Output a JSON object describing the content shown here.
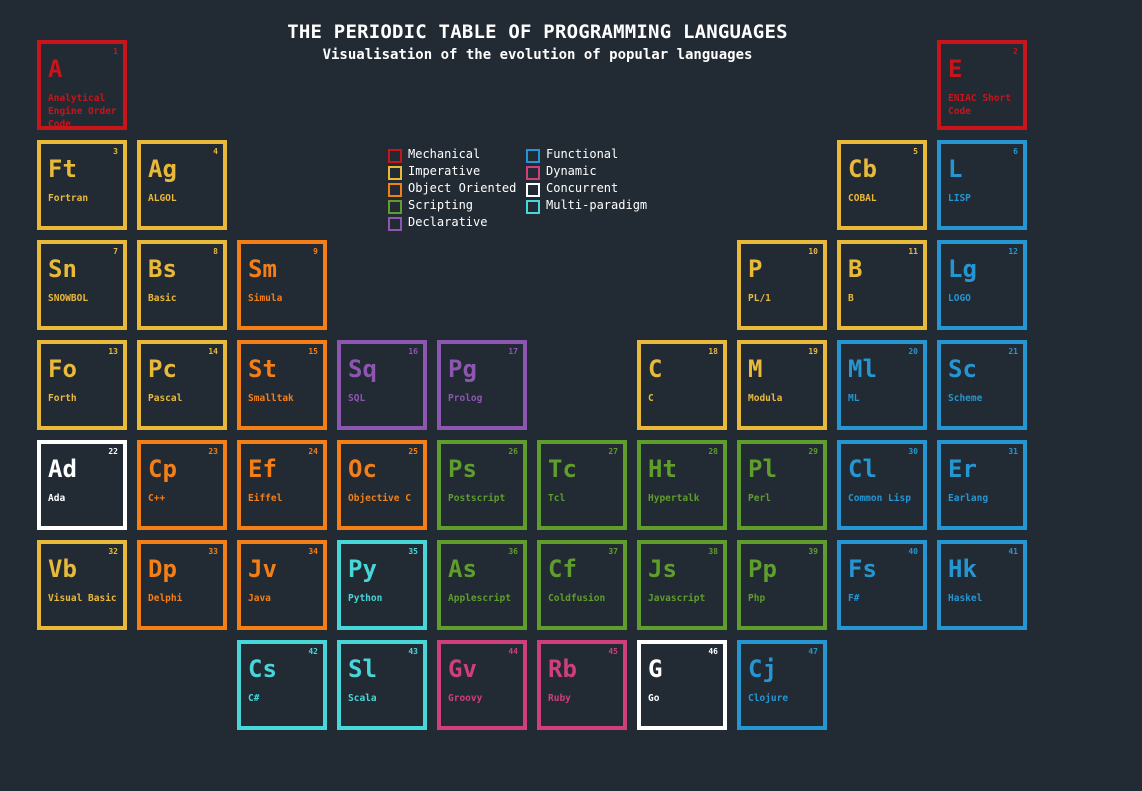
{
  "header": {
    "title": "THE PERIODIC TABLE OF PROGRAMMING LANGUAGES",
    "subtitle": "Visualisation of the evolution of popular languages"
  },
  "colors": {
    "mechanical": "#c8141b",
    "imperative": "#e9b93a",
    "object_oriented": "#f57f17",
    "scripting": "#5f9d2c",
    "declarative": "#8d56b1",
    "functional": "#2596d2",
    "dynamic": "#cf3f7a",
    "concurrent": "#ffffff",
    "multi_paradigm": "#48d7d9"
  },
  "legend": [
    {
      "label": "Mechanical",
      "category": "mechanical"
    },
    {
      "label": "Imperative",
      "category": "imperative"
    },
    {
      "label": "Object Oriented",
      "category": "object_oriented"
    },
    {
      "label": "Scripting",
      "category": "scripting"
    },
    {
      "label": "Declarative",
      "category": "declarative"
    },
    {
      "label": "Functional",
      "category": "functional"
    },
    {
      "label": "Dynamic",
      "category": "dynamic"
    },
    {
      "label": "Concurrent",
      "category": "concurrent"
    },
    {
      "label": "Multi-paradigm",
      "category": "multi_paradigm"
    }
  ],
  "elements": [
    {
      "num": "1",
      "sym": "A",
      "name": "Analytical Engine Order Code",
      "category": "mechanical"
    },
    {
      "num": "2",
      "sym": "E",
      "name": "ENIAC Short Code",
      "category": "mechanical"
    },
    {
      "num": "3",
      "sym": "Ft",
      "name": "Fortran",
      "category": "imperative"
    },
    {
      "num": "4",
      "sym": "Ag",
      "name": "ALGOL",
      "category": "imperative"
    },
    {
      "num": "5",
      "sym": "Cb",
      "name": "COBAL",
      "category": "imperative"
    },
    {
      "num": "6",
      "sym": "L",
      "name": "LISP",
      "category": "functional"
    },
    {
      "num": "7",
      "sym": "Sn",
      "name": "SNOWBOL",
      "category": "imperative"
    },
    {
      "num": "8",
      "sym": "Bs",
      "name": "Basic",
      "category": "imperative"
    },
    {
      "num": "9",
      "sym": "Sm",
      "name": "Simula",
      "category": "object_oriented"
    },
    {
      "num": "10",
      "sym": "P",
      "name": "PL/1",
      "category": "imperative"
    },
    {
      "num": "11",
      "sym": "B",
      "name": "B",
      "category": "imperative"
    },
    {
      "num": "12",
      "sym": "Lg",
      "name": "LOGO",
      "category": "functional"
    },
    {
      "num": "13",
      "sym": "Fo",
      "name": "Forth",
      "category": "imperative"
    },
    {
      "num": "14",
      "sym": "Pc",
      "name": "Pascal",
      "category": "imperative"
    },
    {
      "num": "15",
      "sym": "St",
      "name": "Smalltak",
      "category": "object_oriented"
    },
    {
      "num": "16",
      "sym": "Sq",
      "name": "SQL",
      "category": "declarative"
    },
    {
      "num": "17",
      "sym": "Pg",
      "name": "Prolog",
      "category": "declarative"
    },
    {
      "num": "18",
      "sym": "C",
      "name": "C",
      "category": "imperative"
    },
    {
      "num": "19",
      "sym": "M",
      "name": "Modula",
      "category": "imperative"
    },
    {
      "num": "20",
      "sym": "Ml",
      "name": "ML",
      "category": "functional"
    },
    {
      "num": "21",
      "sym": "Sc",
      "name": "Scheme",
      "category": "functional"
    },
    {
      "num": "22",
      "sym": "Ad",
      "name": "Ada",
      "category": "concurrent"
    },
    {
      "num": "23",
      "sym": "Cp",
      "name": "C++",
      "category": "object_oriented"
    },
    {
      "num": "24",
      "sym": "Ef",
      "name": "Eiffel",
      "category": "object_oriented"
    },
    {
      "num": "25",
      "sym": "Oc",
      "name": "Objective C",
      "category": "object_oriented"
    },
    {
      "num": "26",
      "sym": "Ps",
      "name": "Postscript",
      "category": "scripting"
    },
    {
      "num": "27",
      "sym": "Tc",
      "name": "Tcl",
      "category": "scripting"
    },
    {
      "num": "28",
      "sym": "Ht",
      "name": "Hypertalk",
      "category": "scripting"
    },
    {
      "num": "29",
      "sym": "Pl",
      "name": "Perl",
      "category": "scripting"
    },
    {
      "num": "30",
      "sym": "Cl",
      "name": "Common Lisp",
      "category": "functional"
    },
    {
      "num": "31",
      "sym": "Er",
      "name": "Earlang",
      "category": "functional"
    },
    {
      "num": "32",
      "sym": "Vb",
      "name": "Visual Basic",
      "category": "imperative"
    },
    {
      "num": "33",
      "sym": "Dp",
      "name": "Delphi",
      "category": "object_oriented"
    },
    {
      "num": "34",
      "sym": "Jv",
      "name": "Java",
      "category": "object_oriented"
    },
    {
      "num": "35",
      "sym": "Py",
      "name": "Python",
      "category": "multi_paradigm"
    },
    {
      "num": "36",
      "sym": "As",
      "name": "Applescript",
      "category": "scripting"
    },
    {
      "num": "37",
      "sym": "Cf",
      "name": "Coldfusion",
      "category": "scripting"
    },
    {
      "num": "38",
      "sym": "Js",
      "name": "Javascript",
      "category": "scripting"
    },
    {
      "num": "39",
      "sym": "Pp",
      "name": "Php",
      "category": "scripting"
    },
    {
      "num": "40",
      "sym": "Fs",
      "name": "F#",
      "category": "functional"
    },
    {
      "num": "41",
      "sym": "Hk",
      "name": "Haskel",
      "category": "functional"
    },
    {
      "num": "42",
      "sym": "Cs",
      "name": "C#",
      "category": "multi_paradigm"
    },
    {
      "num": "43",
      "sym": "Sl",
      "name": "Scala",
      "category": "multi_paradigm"
    },
    {
      "num": "44",
      "sym": "Gv",
      "name": "Groovy",
      "category": "dynamic"
    },
    {
      "num": "45",
      "sym": "Rb",
      "name": "Ruby",
      "category": "dynamic"
    },
    {
      "num": "46",
      "sym": "G",
      "name": "Go",
      "category": "concurrent"
    },
    {
      "num": "47",
      "sym": "Cj",
      "name": "Clojure",
      "category": "functional"
    }
  ]
}
